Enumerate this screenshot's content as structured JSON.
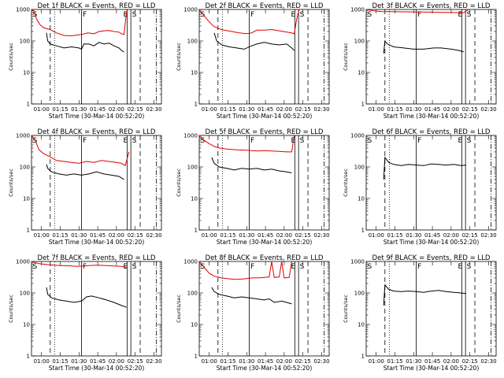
{
  "figure": {
    "title_template": "BLACK = Events, RED = LLD",
    "xlabel": "Start Time (30-Mar-14 00:52:20)",
    "ylabel": "Counts/sec",
    "x_tick_labels": [
      "01:00",
      "01:15",
      "01:30",
      "01:45",
      "02:00",
      "02:15",
      "02:30"
    ],
    "y_tick_labels": [
      "1",
      "10",
      "100",
      "1000"
    ],
    "markers": {
      "S": "S",
      "F": "F",
      "E": "E"
    },
    "colors": {
      "events": "#000000",
      "lld": "#e00000",
      "axis": "#000000"
    }
  },
  "chart_data": [
    {
      "type": "line",
      "title": "Det 1f BLACK = Events, RED = LLD",
      "x_range_minutes": [
        0,
        104
      ],
      "ylim": [
        1,
        1000
      ],
      "log_y": true,
      "red_series": [
        [
          0,
          1000
        ],
        [
          2,
          900
        ],
        [
          4,
          500
        ],
        [
          7,
          320
        ],
        [
          10,
          260
        ],
        [
          15,
          230
        ],
        [
          20,
          180
        ],
        [
          26,
          150
        ],
        [
          32,
          145
        ],
        [
          40,
          160
        ],
        [
          45,
          180
        ],
        [
          50,
          170
        ],
        [
          54,
          200
        ],
        [
          58,
          210
        ],
        [
          62,
          215
        ],
        [
          66,
          200
        ],
        [
          70,
          190
        ],
        [
          72,
          170
        ],
        [
          74,
          160
        ],
        [
          76,
          800
        ],
        [
          77,
          1000
        ]
      ],
      "black_series": [
        [
          12,
          180
        ],
        [
          13,
          100
        ],
        [
          15,
          80
        ],
        [
          20,
          70
        ],
        [
          26,
          60
        ],
        [
          32,
          65
        ],
        [
          38,
          60
        ],
        [
          40,
          55
        ],
        [
          42,
          80
        ],
        [
          46,
          80
        ],
        [
          50,
          70
        ],
        [
          54,
          90
        ],
        [
          58,
          80
        ],
        [
          62,
          85
        ],
        [
          66,
          70
        ],
        [
          70,
          60
        ],
        [
          72,
          50
        ],
        [
          74,
          45
        ]
      ]
    },
    {
      "type": "line",
      "title": "Det 2f BLACK = Events, RED = LLD",
      "x_range_minutes": [
        0,
        104
      ],
      "ylim": [
        1,
        1000
      ],
      "log_y": true,
      "red_series": [
        [
          0,
          1000
        ],
        [
          3,
          700
        ],
        [
          7,
          450
        ],
        [
          11,
          300
        ],
        [
          15,
          250
        ],
        [
          20,
          220
        ],
        [
          26,
          200
        ],
        [
          32,
          180
        ],
        [
          38,
          170
        ],
        [
          42,
          180
        ],
        [
          46,
          220
        ],
        [
          52,
          220
        ],
        [
          58,
          230
        ],
        [
          64,
          210
        ],
        [
          70,
          190
        ],
        [
          74,
          180
        ],
        [
          76,
          170
        ],
        [
          78,
          500
        ],
        [
          80,
          1000
        ]
      ],
      "black_series": [
        [
          12,
          180
        ],
        [
          14,
          100
        ],
        [
          18,
          75
        ],
        [
          24,
          65
        ],
        [
          30,
          60
        ],
        [
          36,
          55
        ],
        [
          42,
          70
        ],
        [
          46,
          80
        ],
        [
          52,
          90
        ],
        [
          58,
          80
        ],
        [
          64,
          75
        ],
        [
          70,
          80
        ],
        [
          74,
          60
        ],
        [
          76,
          50
        ]
      ]
    },
    {
      "type": "line",
      "title": "Det 3f BLACK = Events, RED = LLD",
      "x_range_minutes": [
        0,
        104
      ],
      "ylim": [
        1,
        1000
      ],
      "log_y": true,
      "red_series": [
        [
          0,
          1000
        ],
        [
          6,
          900
        ],
        [
          12,
          860
        ],
        [
          20,
          850
        ],
        [
          30,
          840
        ],
        [
          40,
          830
        ],
        [
          50,
          820
        ],
        [
          60,
          810
        ],
        [
          70,
          800
        ],
        [
          78,
          790
        ],
        [
          82,
          1000
        ]
      ],
      "black_series": [
        [
          14,
          40
        ],
        [
          15,
          100
        ],
        [
          17,
          80
        ],
        [
          22,
          65
        ],
        [
          30,
          60
        ],
        [
          38,
          55
        ],
        [
          46,
          55
        ],
        [
          54,
          60
        ],
        [
          60,
          60
        ],
        [
          68,
          55
        ],
        [
          74,
          50
        ],
        [
          78,
          45
        ]
      ]
    },
    {
      "type": "line",
      "title": "Det 4f BLACK = Events, RED = LLD",
      "x_range_minutes": [
        0,
        104
      ],
      "ylim": [
        1,
        1000
      ],
      "log_y": true,
      "red_series": [
        [
          0,
          1000
        ],
        [
          3,
          700
        ],
        [
          6,
          350
        ],
        [
          10,
          260
        ],
        [
          14,
          220
        ],
        [
          20,
          160
        ],
        [
          26,
          150
        ],
        [
          32,
          140
        ],
        [
          38,
          130
        ],
        [
          44,
          150
        ],
        [
          50,
          140
        ],
        [
          56,
          160
        ],
        [
          62,
          150
        ],
        [
          68,
          140
        ],
        [
          72,
          130
        ],
        [
          75,
          110
        ],
        [
          78,
          300
        ]
      ],
      "black_series": [
        [
          12,
          120
        ],
        [
          13,
          90
        ],
        [
          16,
          70
        ],
        [
          22,
          60
        ],
        [
          28,
          55
        ],
        [
          34,
          60
        ],
        [
          40,
          55
        ],
        [
          46,
          60
        ],
        [
          52,
          70
        ],
        [
          58,
          60
        ],
        [
          64,
          55
        ],
        [
          70,
          50
        ],
        [
          74,
          40
        ]
      ]
    },
    {
      "type": "line",
      "title": "Det 5f BLACK = Events, RED = LLD",
      "x_range_minutes": [
        0,
        104
      ],
      "ylim": [
        1,
        1000
      ],
      "log_y": true,
      "red_series": [
        [
          0,
          1000
        ],
        [
          4,
          700
        ],
        [
          8,
          550
        ],
        [
          12,
          450
        ],
        [
          16,
          400
        ],
        [
          22,
          370
        ],
        [
          30,
          350
        ],
        [
          38,
          340
        ],
        [
          46,
          320
        ],
        [
          52,
          330
        ],
        [
          58,
          320
        ],
        [
          64,
          310
        ],
        [
          70,
          300
        ],
        [
          74,
          300
        ],
        [
          76,
          1000
        ]
      ],
      "black_series": [
        [
          10,
          200
        ],
        [
          12,
          130
        ],
        [
          16,
          100
        ],
        [
          22,
          90
        ],
        [
          28,
          80
        ],
        [
          34,
          90
        ],
        [
          40,
          85
        ],
        [
          46,
          90
        ],
        [
          52,
          80
        ],
        [
          58,
          85
        ],
        [
          64,
          75
        ],
        [
          70,
          70
        ],
        [
          74,
          65
        ]
      ]
    },
    {
      "type": "line",
      "title": "Det 6f BLACK = Events, RED = LLD",
      "x_range_minutes": [
        0,
        104
      ],
      "ylim": [
        1,
        1000
      ],
      "log_y": true,
      "red_series": [],
      "black_series": [
        [
          14,
          40
        ],
        [
          15,
          200
        ],
        [
          18,
          140
        ],
        [
          22,
          120
        ],
        [
          28,
          110
        ],
        [
          34,
          120
        ],
        [
          40,
          115
        ],
        [
          46,
          110
        ],
        [
          52,
          125
        ],
        [
          58,
          120
        ],
        [
          64,
          115
        ],
        [
          70,
          120
        ],
        [
          76,
          110
        ],
        [
          80,
          115
        ]
      ]
    },
    {
      "type": "line",
      "title": "Det 7f BLACK = Events, RED = LLD",
      "x_range_minutes": [
        0,
        104
      ],
      "ylim": [
        1,
        1000
      ],
      "log_y": true,
      "red_series": [
        [
          0,
          1000
        ],
        [
          6,
          850
        ],
        [
          12,
          800
        ],
        [
          18,
          760
        ],
        [
          24,
          740
        ],
        [
          30,
          730
        ],
        [
          36,
          700
        ],
        [
          42,
          720
        ],
        [
          48,
          750
        ],
        [
          54,
          760
        ],
        [
          60,
          740
        ],
        [
          66,
          720
        ],
        [
          72,
          700
        ],
        [
          76,
          650
        ]
      ],
      "black_series": [
        [
          12,
          150
        ],
        [
          13,
          90
        ],
        [
          16,
          70
        ],
        [
          22,
          60
        ],
        [
          28,
          55
        ],
        [
          34,
          50
        ],
        [
          40,
          55
        ],
        [
          44,
          75
        ],
        [
          48,
          80
        ],
        [
          54,
          70
        ],
        [
          60,
          60
        ],
        [
          66,
          50
        ],
        [
          72,
          40
        ],
        [
          76,
          35
        ]
      ]
    },
    {
      "type": "line",
      "title": "Det 8f BLACK = Events, RED = LLD",
      "x_range_minutes": [
        0,
        104
      ],
      "ylim": [
        1,
        1000
      ],
      "log_y": true,
      "red_series": [
        [
          0,
          1000
        ],
        [
          4,
          650
        ],
        [
          8,
          420
        ],
        [
          12,
          340
        ],
        [
          18,
          300
        ],
        [
          24,
          280
        ],
        [
          30,
          270
        ],
        [
          36,
          280
        ],
        [
          42,
          300
        ],
        [
          48,
          300
        ],
        [
          52,
          310
        ],
        [
          56,
          320
        ],
        [
          58,
          1000
        ],
        [
          60,
          310
        ],
        [
          64,
          320
        ],
        [
          66,
          1000
        ],
        [
          68,
          300
        ],
        [
          72,
          310
        ],
        [
          74,
          1000
        ]
      ],
      "black_series": [
        [
          10,
          150
        ],
        [
          12,
          110
        ],
        [
          16,
          90
        ],
        [
          22,
          80
        ],
        [
          28,
          70
        ],
        [
          34,
          75
        ],
        [
          40,
          70
        ],
        [
          46,
          65
        ],
        [
          52,
          60
        ],
        [
          56,
          65
        ],
        [
          60,
          50
        ],
        [
          66,
          55
        ],
        [
          70,
          50
        ],
        [
          74,
          45
        ]
      ]
    },
    {
      "type": "line",
      "title": "Det 9f BLACK = Events, RED = LLD",
      "x_range_minutes": [
        0,
        104
      ],
      "ylim": [
        1,
        1000
      ],
      "log_y": true,
      "red_series": [],
      "black_series": [
        [
          14,
          40
        ],
        [
          15,
          180
        ],
        [
          18,
          130
        ],
        [
          22,
          115
        ],
        [
          28,
          110
        ],
        [
          34,
          115
        ],
        [
          40,
          110
        ],
        [
          46,
          105
        ],
        [
          52,
          115
        ],
        [
          58,
          120
        ],
        [
          64,
          110
        ],
        [
          70,
          105
        ],
        [
          76,
          100
        ],
        [
          80,
          95
        ]
      ]
    }
  ]
}
